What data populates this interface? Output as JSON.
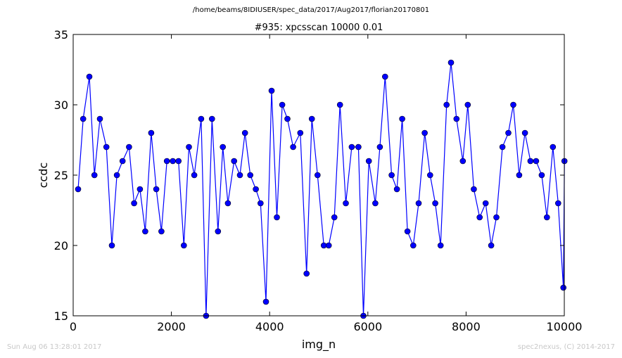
{
  "suptitle": "/home/beams/8IDIUSER/spec_data/2017/Aug2017/florian20170801",
  "footer": {
    "timestamp": "Sun Aug 06 13:28:01 2017",
    "credit": "spec2nexus, (C) 2014-2017"
  },
  "chart_data": {
    "type": "line",
    "title": "#935: xpcsscan 10000 0.01",
    "xlabel": "img_n",
    "ylabel": "ccdc",
    "xlim": [
      0,
      10000
    ],
    "ylim": [
      15,
      35
    ],
    "xticks": [
      "0",
      "2000",
      "4000",
      "6000",
      "8000",
      "10000"
    ],
    "yticks": [
      "15",
      "20",
      "25",
      "30",
      "35"
    ],
    "line_color": "#0000ff",
    "marker": "circle",
    "grid": false,
    "series": [
      {
        "x": [
          101,
          204,
          330,
          433,
          544,
          676,
          788,
          889,
          1006,
          1138,
          1241,
          1359,
          1467,
          1589,
          1692,
          1797,
          1909,
          2028,
          2145,
          2254,
          2357,
          2466,
          2606,
          2707,
          2827,
          2948,
          3047,
          3150,
          3277,
          3395,
          3499,
          3606,
          3719,
          3815,
          3925,
          4040,
          4147,
          4256,
          4363,
          4478,
          4625,
          4752,
          4860,
          4975,
          5103,
          5203,
          5318,
          5432,
          5551,
          5672,
          5808,
          5910,
          6020,
          6152,
          6245,
          6351,
          6484,
          6592,
          6699,
          6806,
          6924,
          7035,
          7158,
          7268,
          7372,
          7481,
          7603,
          7693,
          7805,
          7934,
          8034,
          8157,
          8276,
          8398,
          8511,
          8617,
          8740,
          8861,
          8962,
          9082,
          9199,
          9311,
          9426,
          9540,
          9646,
          9768,
          9876,
          9982,
          10003
        ],
        "y": [
          24,
          29,
          32,
          25,
          29,
          27,
          20,
          25,
          26,
          27,
          23,
          24,
          21,
          28,
          24,
          21,
          26,
          26,
          26,
          20,
          27,
          25,
          29,
          15,
          29,
          21,
          27,
          23,
          26,
          25,
          28,
          25,
          24,
          23,
          16,
          31,
          22,
          30,
          29,
          27,
          28,
          18,
          29,
          25,
          20,
          20,
          22,
          30,
          23,
          27,
          27,
          15,
          26,
          23,
          27,
          32,
          25,
          24,
          29,
          21,
          20,
          23,
          28,
          25,
          23,
          20,
          30,
          33,
          29,
          26,
          30,
          24,
          22,
          23,
          20,
          22,
          27,
          28,
          30,
          25,
          28,
          26,
          26,
          25,
          22,
          27,
          23,
          17,
          26
        ]
      }
    ]
  }
}
